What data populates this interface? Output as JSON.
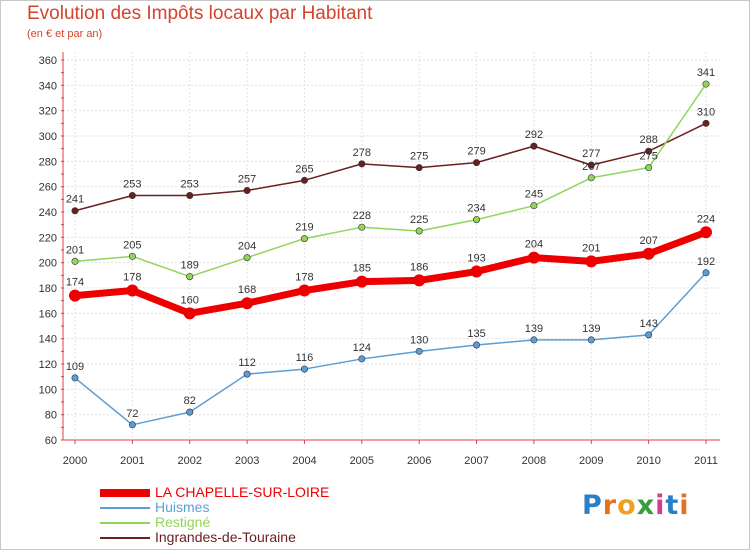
{
  "title": "Evolution des Impôts locaux par Habitant",
  "subtitle": "(en € et par an)",
  "logo": {
    "text": "Proxiti",
    "letter_colors": [
      "#2a7fc9",
      "#e8711e",
      "#f0a020",
      "#3b9c3b",
      "#d93a8c",
      "#2a7fc9",
      "#e8711e"
    ]
  },
  "chart_data": {
    "type": "line",
    "title": "Evolution des Impôts locaux par Habitant",
    "subtitle": "(en € et par an)",
    "xlabel": "",
    "ylabel": "",
    "x": [
      "2000",
      "2001",
      "2002",
      "2003",
      "2004",
      "2005",
      "2006",
      "2007",
      "2008",
      "2009",
      "2010",
      "2011"
    ],
    "ylim": [
      60,
      360
    ],
    "yticks": [
      60,
      80,
      100,
      120,
      140,
      160,
      180,
      200,
      220,
      240,
      260,
      280,
      300,
      320,
      340,
      360
    ],
    "grid": true,
    "legend_position": "bottom-left",
    "series": [
      {
        "name": "Ingrandes-de-Touraine",
        "color": "#6b1f1f",
        "values": [
          241,
          253,
          253,
          257,
          265,
          278,
          275,
          279,
          292,
          277,
          288,
          310
        ],
        "labels_below": false
      },
      {
        "name": "Restigné",
        "color": "#8fd65a",
        "values": [
          201,
          205,
          189,
          204,
          219,
          228,
          225,
          234,
          245,
          267,
          275,
          341
        ],
        "labels_below": false
      },
      {
        "name": "LA CHAPELLE-SUR-LOIRE",
        "color": "#ee0000",
        "values": [
          174,
          178,
          160,
          168,
          178,
          185,
          186,
          193,
          204,
          201,
          207,
          224
        ],
        "labels_below": false
      },
      {
        "name": "Huismes",
        "color": "#5b9ed6",
        "values": [
          109,
          72,
          82,
          112,
          116,
          124,
          130,
          135,
          139,
          139,
          143,
          192
        ],
        "labels_below": false
      }
    ]
  },
  "legend": [
    {
      "name": "LA CHAPELLE-SUR-LOIRE",
      "color": "#ee0000",
      "thick": true
    },
    {
      "name": "Huismes",
      "color": "#5b9ed6",
      "thick": false
    },
    {
      "name": "Restigné",
      "color": "#8fd65a",
      "thick": false
    },
    {
      "name": "Ingrandes-de-Touraine",
      "color": "#6b1f1f",
      "thick": false
    }
  ]
}
